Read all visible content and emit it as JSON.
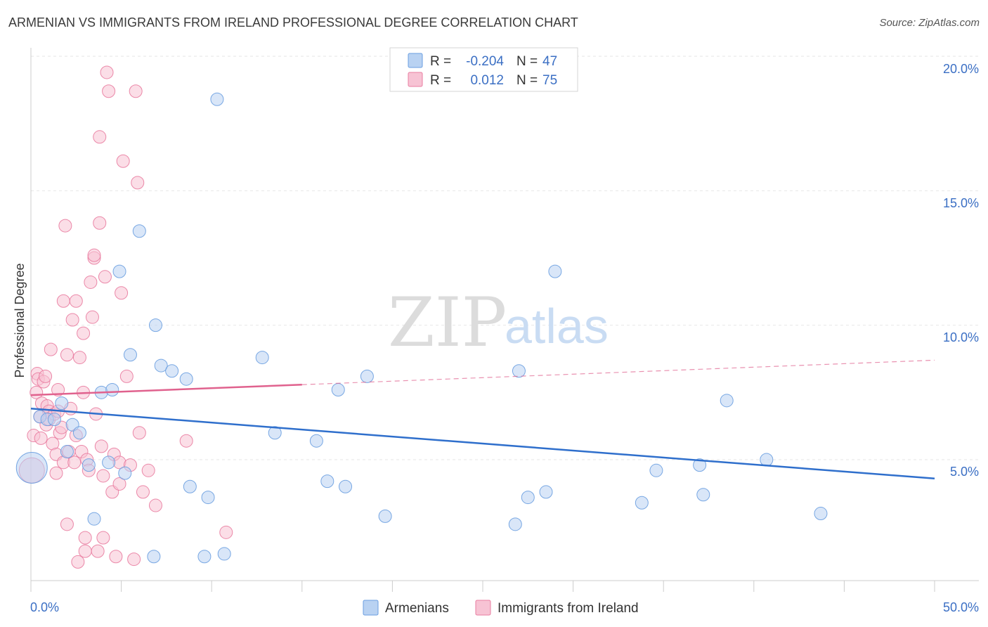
{
  "title": "ARMENIAN VS IMMIGRANTS FROM IRELAND PROFESSIONAL DEGREE CORRELATION CHART",
  "source": "Source: ZipAtlas.com",
  "watermark": {
    "zip": "ZIP",
    "atlas": "atlas"
  },
  "colors": {
    "blue": "#6a9ee0",
    "blue_fill": "#b9d2f2",
    "blue_line": "#2f6fcc",
    "pink": "#e97ca0",
    "pink_fill": "#f7c3d4",
    "pink_line": "#e0628e",
    "label_blue": "#3b6fc4"
  },
  "chart_data": {
    "type": "scatter",
    "title": "ARMENIAN VS IMMIGRANTS FROM IRELAND PROFESSIONAL DEGREE CORRELATION CHART",
    "xlabel": "",
    "ylabel": "Professional Degree",
    "xlim": [
      0,
      50
    ],
    "ylim": [
      0,
      20.5
    ],
    "x_tick_labels": [
      "0.0%",
      "50.0%"
    ],
    "y_ticks": [
      5,
      10,
      15,
      20
    ],
    "y_tick_labels": [
      "5.0%",
      "10.0%",
      "15.0%",
      "20.0%"
    ],
    "grid": true,
    "legend_top": [
      {
        "series": "Armenians",
        "r_label": "R =",
        "r": "-0.204",
        "n_label": "N =",
        "n": "47"
      },
      {
        "series": "Immigrants from Ireland",
        "r_label": "R =",
        "r": "0.012",
        "n_label": "N =",
        "n": "75"
      }
    ],
    "series": [
      {
        "name": "Armenians",
        "trend": {
          "x0": 0,
          "y0": 6.9,
          "x1": 50,
          "y1": 4.3,
          "dashed_from": null
        },
        "points": [
          [
            0.05,
            4.7,
            22
          ],
          [
            0.5,
            6.6,
            9
          ],
          [
            0.9,
            6.5,
            9
          ],
          [
            1.3,
            6.5,
            9
          ],
          [
            1.7,
            7.1,
            9
          ],
          [
            2.0,
            5.3,
            9
          ],
          [
            2.3,
            6.3,
            9
          ],
          [
            2.7,
            6.0,
            9
          ],
          [
            3.2,
            4.8,
            9
          ],
          [
            3.5,
            2.8,
            9
          ],
          [
            3.9,
            7.5,
            9
          ],
          [
            4.3,
            4.9,
            9
          ],
          [
            4.5,
            7.6,
            9
          ],
          [
            4.9,
            12.0,
            9
          ],
          [
            5.2,
            4.5,
            9
          ],
          [
            5.5,
            8.9,
            9
          ],
          [
            6.0,
            13.5,
            9
          ],
          [
            6.8,
            1.4,
            9
          ],
          [
            6.9,
            10.0,
            9
          ],
          [
            7.2,
            8.5,
            9
          ],
          [
            7.8,
            8.3,
            9
          ],
          [
            8.6,
            8.0,
            9
          ],
          [
            8.8,
            4.0,
            9
          ],
          [
            9.6,
            1.4,
            9
          ],
          [
            9.8,
            3.6,
            9
          ],
          [
            10.3,
            18.4,
            9
          ],
          [
            10.7,
            1.5,
            9
          ],
          [
            12.8,
            8.8,
            9
          ],
          [
            13.5,
            6.0,
            9
          ],
          [
            15.8,
            5.7,
            9
          ],
          [
            16.4,
            4.2,
            9
          ],
          [
            17.0,
            7.6,
            9
          ],
          [
            17.4,
            4.0,
            9
          ],
          [
            18.6,
            8.1,
            9
          ],
          [
            19.6,
            2.9,
            9
          ],
          [
            26.8,
            2.6,
            9
          ],
          [
            27.0,
            8.3,
            9
          ],
          [
            27.5,
            3.6,
            9
          ],
          [
            28.5,
            3.8,
            9
          ],
          [
            29.0,
            12.0,
            9
          ],
          [
            33.8,
            3.4,
            9
          ],
          [
            34.6,
            4.6,
            9
          ],
          [
            37.0,
            4.8,
            9
          ],
          [
            37.2,
            3.7,
            9
          ],
          [
            38.5,
            7.2,
            9
          ],
          [
            40.7,
            5.0,
            9
          ],
          [
            43.7,
            3.0,
            9
          ]
        ]
      },
      {
        "name": "Immigrants from Ireland",
        "trend": {
          "x0": 0,
          "y0": 7.4,
          "x1": 50,
          "y1": 8.7,
          "dashed_from": 15
        },
        "points": [
          [
            0.05,
            4.6,
            18
          ],
          [
            0.15,
            5.9,
            9
          ],
          [
            0.3,
            7.5,
            9
          ],
          [
            0.35,
            8.2,
            9
          ],
          [
            0.4,
            8.0,
            9
          ],
          [
            0.5,
            6.6,
            9
          ],
          [
            0.55,
            5.8,
            9
          ],
          [
            0.6,
            7.1,
            9
          ],
          [
            0.7,
            7.9,
            9
          ],
          [
            0.8,
            8.1,
            9
          ],
          [
            0.85,
            6.3,
            9
          ],
          [
            0.9,
            7.0,
            9
          ],
          [
            1.0,
            6.8,
            9
          ],
          [
            1.0,
            6.5,
            9
          ],
          [
            1.1,
            9.1,
            9
          ],
          [
            1.2,
            5.6,
            9
          ],
          [
            1.3,
            6.7,
            9
          ],
          [
            1.4,
            5.2,
            9
          ],
          [
            1.4,
            4.5,
            9
          ],
          [
            1.5,
            6.8,
            9
          ],
          [
            1.6,
            6.0,
            9
          ],
          [
            1.7,
            6.2,
            9
          ],
          [
            1.5,
            7.6,
            9
          ],
          [
            1.8,
            10.9,
            9
          ],
          [
            1.8,
            4.9,
            9
          ],
          [
            1.9,
            13.7,
            9
          ],
          [
            2.0,
            2.6,
            9
          ],
          [
            2.0,
            8.9,
            9
          ],
          [
            2.1,
            5.3,
            9
          ],
          [
            2.2,
            6.9,
            9
          ],
          [
            2.3,
            10.2,
            9
          ],
          [
            2.4,
            4.9,
            9
          ],
          [
            2.5,
            10.9,
            9
          ],
          [
            2.5,
            5.9,
            9
          ],
          [
            2.6,
            1.2,
            9
          ],
          [
            2.7,
            8.8,
            9
          ],
          [
            2.8,
            5.3,
            9
          ],
          [
            2.9,
            7.5,
            9
          ],
          [
            2.9,
            9.7,
            9
          ],
          [
            3.0,
            2.1,
            9
          ],
          [
            3.0,
            1.6,
            9
          ],
          [
            3.1,
            5.0,
            9
          ],
          [
            3.2,
            4.6,
            9
          ],
          [
            3.3,
            11.6,
            9
          ],
          [
            3.4,
            10.3,
            9
          ],
          [
            3.5,
            12.5,
            9
          ],
          [
            3.5,
            12.6,
            9
          ],
          [
            3.6,
            6.7,
            9
          ],
          [
            3.7,
            1.6,
            9
          ],
          [
            3.8,
            17.0,
            9
          ],
          [
            3.8,
            13.8,
            9
          ],
          [
            3.9,
            5.5,
            9
          ],
          [
            4.0,
            2.1,
            9
          ],
          [
            4.0,
            4.4,
            9
          ],
          [
            4.1,
            11.8,
            9
          ],
          [
            4.2,
            19.4,
            9
          ],
          [
            4.3,
            18.7,
            9
          ],
          [
            4.5,
            3.8,
            9
          ],
          [
            4.6,
            5.2,
            9
          ],
          [
            4.7,
            1.4,
            9
          ],
          [
            4.9,
            4.1,
            9
          ],
          [
            4.9,
            4.9,
            9
          ],
          [
            5.0,
            11.2,
            9
          ],
          [
            5.1,
            16.1,
            9
          ],
          [
            5.3,
            8.1,
            9
          ],
          [
            5.5,
            4.8,
            9
          ],
          [
            5.7,
            1.3,
            9
          ],
          [
            5.8,
            18.7,
            9
          ],
          [
            5.9,
            15.3,
            9
          ],
          [
            6.0,
            6.0,
            9
          ],
          [
            6.2,
            3.8,
            9
          ],
          [
            6.5,
            4.6,
            9
          ],
          [
            6.9,
            3.3,
            9
          ],
          [
            8.6,
            5.7,
            9
          ],
          [
            10.8,
            2.3,
            9
          ]
        ]
      }
    ]
  },
  "legend_bottom": [
    {
      "label": "Armenians"
    },
    {
      "label": "Immigrants from Ireland"
    }
  ]
}
